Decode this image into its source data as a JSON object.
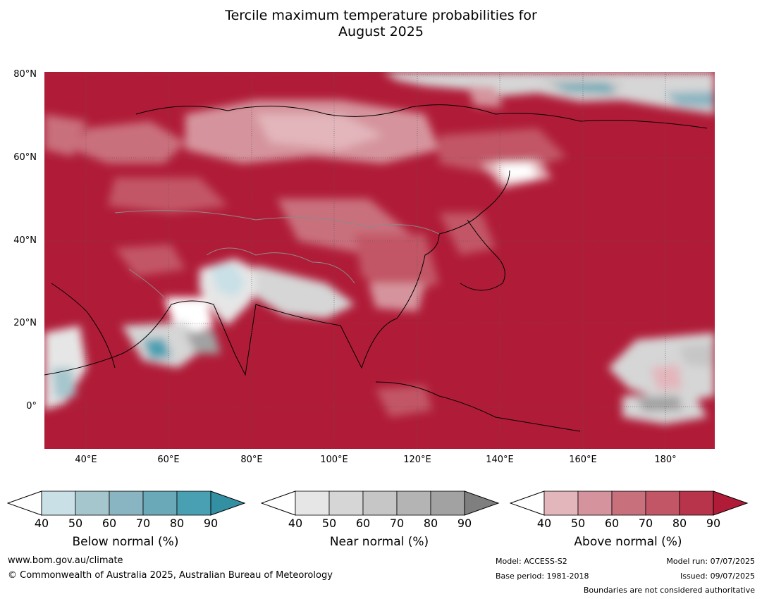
{
  "title_line1": "Tercile maximum temperature probabilities for",
  "title_line2": "August 2025",
  "lat_labels": [
    "80°N",
    "60°N",
    "40°N",
    "20°N",
    "0°"
  ],
  "lon_labels": [
    "40°E",
    "60°E",
    "80°E",
    "100°E",
    "120°E",
    "140°E",
    "160°E",
    "180°"
  ],
  "colorbars": [
    {
      "label": "Below normal (%)",
      "ticks": [
        "40",
        "50",
        "60",
        "70",
        "80",
        "90"
      ],
      "colors": [
        "#c8e0e6",
        "#a6c6cd",
        "#89b4c1",
        "#6aaab8",
        "#48a0b2",
        "#3390a3"
      ]
    },
    {
      "label": "Near normal (%)",
      "ticks": [
        "40",
        "50",
        "60",
        "70",
        "80",
        "90"
      ],
      "colors": [
        "#e6e6e6",
        "#d6d6d6",
        "#c6c6c6",
        "#b4b4b4",
        "#a2a2a2",
        "#7f7f7f"
      ]
    },
    {
      "label": "Above normal (%)",
      "ticks": [
        "40",
        "50",
        "60",
        "70",
        "80",
        "90"
      ],
      "colors": [
        "#e3b6bc",
        "#d5949d",
        "#c9707d",
        "#c25666",
        "#b8344a",
        "#b01c38"
      ]
    }
  ],
  "footer": {
    "website": "www.bom.gov.au/climate",
    "copyright": "© Commonwealth of Australia 2025, Australian Bureau of Meteorology",
    "model": "Model: ACCESS-S2",
    "base_period": "Base period: 1981-2018",
    "model_run": "Model run: 07/07/2025",
    "issued": "Issued: 09/07/2025",
    "disclaimer": "Boundaries are not considered authoritative"
  },
  "colors": {
    "dominant_fill": "#b01c38"
  }
}
